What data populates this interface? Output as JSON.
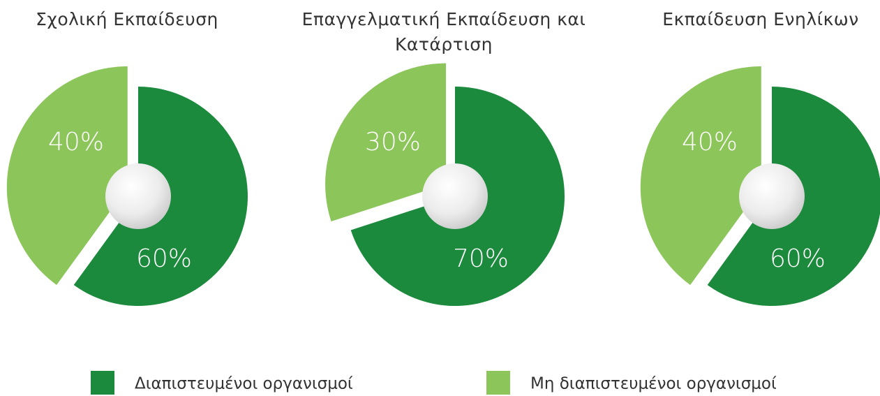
{
  "chart_data": [
    {
      "type": "pie",
      "title": "Σχολική Εκπαίδευση",
      "values": [
        60,
        40
      ],
      "value_labels": [
        "60%",
        "40%"
      ]
    },
    {
      "type": "pie",
      "title": "Επαγγελματική Εκπαίδευση και Κατάρτιση",
      "values": [
        70,
        30
      ],
      "value_labels": [
        "70%",
        "30%"
      ]
    },
    {
      "type": "pie",
      "title": "Εκπαίδευση Ενηλίκων",
      "values": [
        60,
        40
      ],
      "value_labels": [
        "60%",
        "40%"
      ]
    }
  ],
  "legend": {
    "labels": [
      "Διαπιστευμένοι οργανισμοί",
      "Μη διαπιστευμένοι οργανισμοί"
    ],
    "colors": [
      "#1b8a3c",
      "#8cc55a"
    ]
  }
}
